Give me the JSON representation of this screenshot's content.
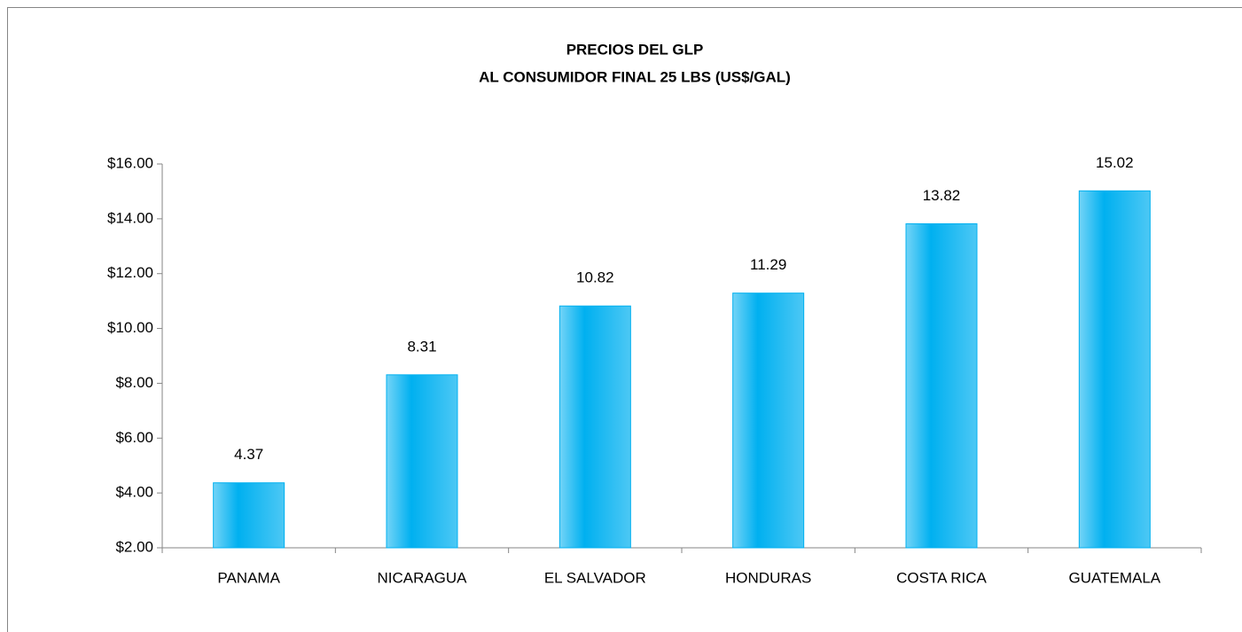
{
  "chart_data": {
    "type": "bar",
    "title": "PRECIOS DEL GLP",
    "subtitle": "AL CONSUMIDOR FINAL  25 LBS (US$/GAL)",
    "categories": [
      "PANAMA",
      "NICARAGUA",
      "EL SALVADOR",
      "HONDURAS",
      "COSTA RICA",
      "GUATEMALA"
    ],
    "values": [
      4.37,
      8.31,
      10.82,
      11.29,
      13.82,
      15.02
    ],
    "color": "#00b0f0",
    "ylim": [
      2,
      16
    ],
    "yticks": [
      {
        "value": 2,
        "label": "$2.00"
      },
      {
        "value": 4,
        "label": "$4.00"
      },
      {
        "value": 6,
        "label": "$6.00"
      },
      {
        "value": 8,
        "label": "$8.00"
      },
      {
        "value": 10,
        "label": "$10.00"
      },
      {
        "value": 12,
        "label": "$12.00"
      },
      {
        "value": 14,
        "label": "$14.00"
      },
      {
        "value": 16,
        "label": "$16.00"
      }
    ],
    "grid": false
  }
}
